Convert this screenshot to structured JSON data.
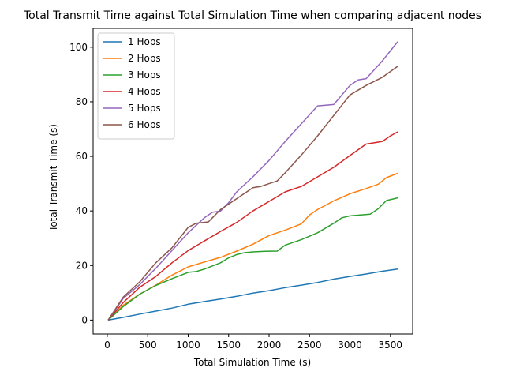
{
  "chart_data": {
    "type": "line",
    "title": "Total Transmit Time against Total Simulation Time when comparing adjacent nodes",
    "xlabel": "Total Simulation Time (s)",
    "ylabel": "Total Transmit Time (s)",
    "xlim": [
      -175,
      3775
    ],
    "ylim": [
      -5.1,
      106.9
    ],
    "xticks": [
      0,
      500,
      1000,
      1500,
      2000,
      2500,
      3000,
      3500
    ],
    "yticks": [
      0,
      20,
      40,
      60,
      80,
      100
    ],
    "grid": false,
    "legend_position": "top-left",
    "series": [
      {
        "name": "1 Hops",
        "color": "#1f77b4",
        "x": [
          10,
          200,
          400,
          600,
          800,
          1000,
          1200,
          1400,
          1600,
          1800,
          2000,
          2200,
          2400,
          2600,
          2800,
          3000,
          3200,
          3400,
          3590
        ],
        "y": [
          0,
          1.0,
          2.2,
          3.3,
          4.4,
          5.8,
          6.8,
          7.7,
          8.7,
          9.9,
          10.8,
          11.9,
          12.8,
          13.8,
          15.0,
          16.0,
          16.9,
          17.9,
          18.7
        ]
      },
      {
        "name": "2 Hops",
        "color": "#ff7f0e",
        "x": [
          10,
          200,
          400,
          600,
          800,
          1000,
          1200,
          1400,
          1600,
          1800,
          2000,
          2200,
          2400,
          2500,
          2600,
          2800,
          3000,
          3200,
          3350,
          3450,
          3590
        ],
        "y": [
          0,
          5.5,
          9.5,
          12.8,
          16.5,
          19.5,
          21.3,
          23.0,
          25.3,
          27.8,
          31.0,
          33.0,
          35.3,
          38.5,
          40.5,
          43.7,
          46.3,
          48.2,
          49.8,
          52.2,
          53.8
        ]
      },
      {
        "name": "3 Hops",
        "color": "#2ca02c",
        "x": [
          10,
          200,
          400,
          600,
          800,
          1000,
          1100,
          1200,
          1400,
          1500,
          1600,
          1700,
          1800,
          1950,
          2100,
          2200,
          2400,
          2600,
          2800,
          2900,
          3000,
          3250,
          3350,
          3450,
          3590
        ],
        "y": [
          0,
          5.0,
          9.5,
          12.7,
          15.2,
          17.5,
          17.8,
          18.7,
          21.0,
          22.8,
          24.0,
          24.7,
          25.0,
          25.2,
          25.3,
          27.5,
          29.5,
          32.0,
          35.5,
          37.5,
          38.2,
          38.8,
          40.8,
          43.8,
          44.8
        ]
      },
      {
        "name": "4 Hops",
        "color": "#d62728",
        "x": [
          10,
          200,
          400,
          600,
          800,
          1000,
          1200,
          1400,
          1600,
          1800,
          2000,
          2200,
          2400,
          2600,
          2800,
          3000,
          3200,
          3400,
          3500,
          3590
        ],
        "y": [
          0,
          6.5,
          12.0,
          16.0,
          21.0,
          25.5,
          29.0,
          32.5,
          35.8,
          40.0,
          43.5,
          47.0,
          49.0,
          52.5,
          56.0,
          60.3,
          64.5,
          65.5,
          67.5,
          69.0
        ]
      },
      {
        "name": "5 Hops",
        "color": "#9467bd",
        "x": [
          10,
          200,
          400,
          600,
          800,
          1000,
          1200,
          1300,
          1400,
          1500,
          1600,
          1800,
          2000,
          2200,
          2400,
          2600,
          2800,
          3000,
          3100,
          3200,
          3400,
          3590
        ],
        "y": [
          0,
          8.0,
          13.0,
          19.0,
          25.5,
          32.0,
          37.5,
          39.5,
          40.0,
          43.0,
          47.0,
          52.5,
          58.5,
          65.5,
          72.0,
          78.5,
          79.0,
          86.0,
          88.0,
          88.5,
          95.0,
          102.0
        ]
      },
      {
        "name": "6 Hops",
        "color": "#8c564b",
        "x": [
          10,
          200,
          400,
          600,
          800,
          1000,
          1100,
          1250,
          1300,
          1400,
          1600,
          1800,
          1900,
          2000,
          2100,
          2200,
          2400,
          2600,
          2800,
          3000,
          3200,
          3400,
          3590
        ],
        "y": [
          0,
          8.5,
          14.0,
          21.0,
          26.5,
          34.0,
          35.5,
          36.0,
          37.5,
          40.5,
          44.5,
          48.5,
          49.0,
          50.0,
          51.0,
          54.0,
          60.5,
          67.5,
          75.0,
          82.5,
          86.0,
          89.0,
          93.0
        ]
      }
    ]
  }
}
